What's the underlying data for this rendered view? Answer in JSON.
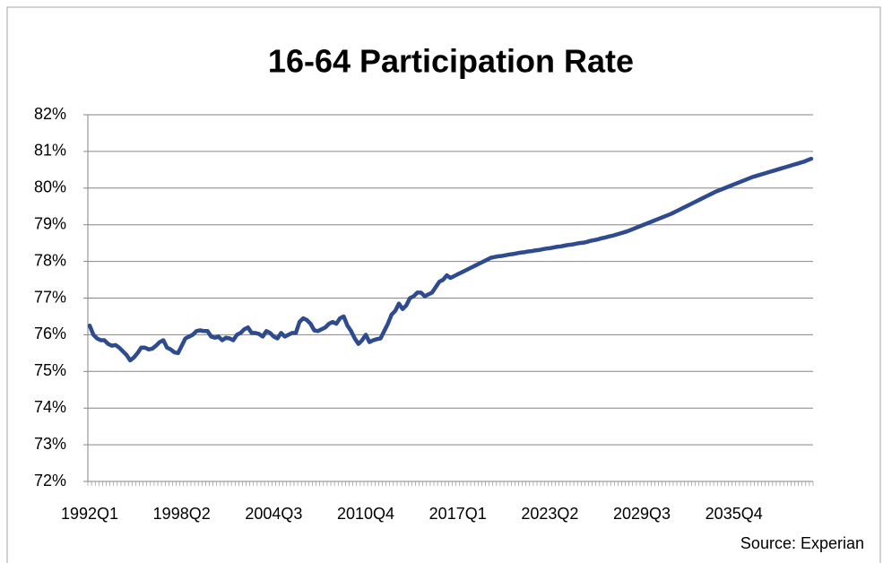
{
  "chart_data": {
    "type": "line",
    "title": "16-64 Participation Rate",
    "source": "Source: Experian",
    "categories": [
      "1992Q1",
      null,
      null,
      null,
      null,
      null,
      null,
      null,
      null,
      null,
      null,
      null,
      null,
      null,
      null,
      null,
      null,
      null,
      null,
      null,
      null,
      null,
      null,
      null,
      null,
      "1998Q2",
      null,
      null,
      null,
      null,
      null,
      null,
      null,
      null,
      null,
      null,
      null,
      null,
      null,
      null,
      null,
      null,
      null,
      null,
      null,
      null,
      null,
      null,
      null,
      null,
      "2004Q3",
      null,
      null,
      null,
      null,
      null,
      null,
      null,
      null,
      null,
      null,
      null,
      null,
      null,
      null,
      null,
      null,
      null,
      null,
      null,
      null,
      null,
      null,
      null,
      null,
      "2010Q4",
      null,
      null,
      null,
      null,
      null,
      null,
      null,
      null,
      null,
      null,
      null,
      null,
      null,
      null,
      null,
      null,
      null,
      null,
      null,
      null,
      null,
      null,
      null,
      null,
      "2017Q1",
      null,
      null,
      null,
      null,
      null,
      null,
      null,
      null,
      null,
      null,
      null,
      null,
      null,
      null,
      null,
      null,
      null,
      null,
      null,
      null,
      null,
      null,
      null,
      null,
      "2023Q2",
      null,
      null,
      null,
      null,
      null,
      null,
      null,
      null,
      null,
      null,
      null,
      null,
      null,
      null,
      null,
      null,
      null,
      null,
      null,
      null,
      null,
      null,
      null,
      null,
      "2029Q3",
      null,
      null,
      null,
      null,
      null,
      null,
      null,
      null,
      null,
      null,
      null,
      null,
      null,
      null,
      null,
      null,
      null,
      null,
      null,
      null,
      null,
      null,
      null,
      null,
      "2035Q4",
      null,
      null,
      null,
      null,
      null,
      null,
      null,
      null,
      null,
      null,
      null,
      null,
      null,
      null,
      null,
      null,
      null,
      null,
      null,
      null,
      null
    ],
    "series": [
      {
        "name": "16-64 Participation Rate",
        "color": "#2f4b8f",
        "values": [
          76.25,
          76.0,
          75.9,
          75.85,
          75.85,
          75.75,
          75.7,
          75.72,
          75.65,
          75.55,
          75.45,
          75.3,
          75.38,
          75.5,
          75.65,
          75.65,
          75.6,
          75.62,
          75.7,
          75.8,
          75.85,
          75.65,
          75.6,
          75.52,
          75.5,
          75.7,
          75.9,
          75.95,
          76.0,
          76.1,
          76.12,
          76.1,
          76.1,
          75.95,
          75.92,
          75.95,
          75.85,
          75.92,
          75.9,
          75.85,
          76.0,
          76.05,
          76.15,
          76.2,
          76.05,
          76.05,
          76.02,
          75.95,
          76.1,
          76.05,
          75.95,
          75.9,
          76.05,
          75.95,
          76.0,
          76.05,
          76.05,
          76.35,
          76.45,
          76.4,
          76.3,
          76.12,
          76.1,
          76.15,
          76.2,
          76.3,
          76.35,
          76.3,
          76.45,
          76.5,
          76.25,
          76.1,
          75.9,
          75.75,
          75.85,
          76.0,
          75.8,
          75.85,
          75.88,
          75.9,
          76.1,
          76.3,
          76.55,
          76.65,
          76.85,
          76.7,
          76.8,
          77.0,
          77.05,
          77.15,
          77.15,
          77.05,
          77.1,
          77.15,
          77.3,
          77.45,
          77.5,
          77.62,
          77.55,
          77.6,
          77.65,
          77.7,
          77.75,
          77.8,
          77.85,
          77.9,
          77.95,
          78.0,
          78.05,
          78.1,
          78.12,
          78.14,
          78.15,
          78.17,
          78.19,
          78.2,
          78.22,
          78.24,
          78.25,
          78.27,
          78.28,
          78.3,
          78.31,
          78.33,
          78.35,
          78.36,
          78.38,
          78.4,
          78.41,
          78.43,
          78.45,
          78.46,
          78.48,
          78.5,
          78.51,
          78.53,
          78.56,
          78.58,
          78.6,
          78.63,
          78.65,
          78.68,
          78.7,
          78.73,
          78.76,
          78.79,
          78.82,
          78.86,
          78.9,
          78.94,
          78.98,
          79.02,
          79.06,
          79.1,
          79.14,
          79.18,
          79.22,
          79.26,
          79.3,
          79.35,
          79.4,
          79.45,
          79.5,
          79.55,
          79.6,
          79.65,
          79.7,
          79.75,
          79.8,
          79.85,
          79.9,
          79.94,
          79.98,
          80.02,
          80.06,
          80.1,
          80.14,
          80.18,
          80.22,
          80.26,
          80.3,
          80.33,
          80.36,
          80.39,
          80.42,
          80.45,
          80.48,
          80.51,
          80.54,
          80.57,
          80.6,
          80.63,
          80.66,
          80.69,
          80.72,
          80.76,
          80.8
        ]
      }
    ],
    "ylim": [
      72,
      82
    ],
    "yticks": [
      {
        "value": 72,
        "label": "72%"
      },
      {
        "value": 73,
        "label": "73%"
      },
      {
        "value": 74,
        "label": "74%"
      },
      {
        "value": 75,
        "label": "75%"
      },
      {
        "value": 76,
        "label": "76%"
      },
      {
        "value": 77,
        "label": "77%"
      },
      {
        "value": 78,
        "label": "78%"
      },
      {
        "value": 79,
        "label": "79%"
      },
      {
        "value": 80,
        "label": "80%"
      },
      {
        "value": 81,
        "label": "81%"
      },
      {
        "value": 82,
        "label": "82%"
      }
    ],
    "grid": true
  }
}
